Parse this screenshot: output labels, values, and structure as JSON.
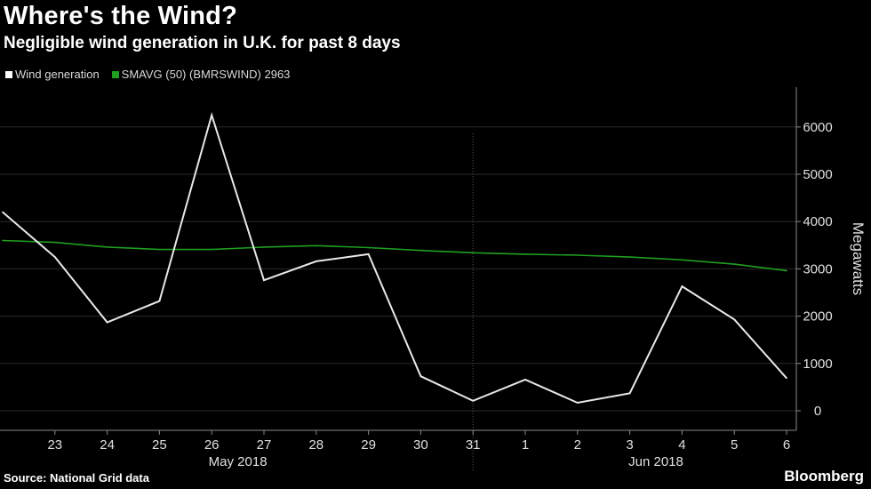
{
  "title": "Where's the Wind?",
  "subtitle": "Negligible wind generation in U.K. for past 8 days",
  "legend": {
    "items": [
      {
        "label": "Wind generation",
        "color": "#ffffff"
      },
      {
        "label": "SMAVG (50) (BMRSWIND) 2963",
        "color": "#1f9e1f"
      }
    ]
  },
  "footer": {
    "source": "Source: National Grid data",
    "brand": "Bloomberg"
  },
  "chart_data": {
    "type": "line",
    "ylabel": "Megawatts",
    "ylim": [
      -400,
      6800
    ],
    "yticks": [
      0,
      1000,
      2000,
      3000,
      4000,
      5000,
      6000
    ],
    "ytick_labels": [
      "0",
      "1000",
      "2000",
      "3000",
      "4000",
      "5000",
      "6000"
    ],
    "x": [
      "2018-05-22",
      "2018-05-23",
      "2018-05-24",
      "2018-05-25",
      "2018-05-26",
      "2018-05-27",
      "2018-05-28",
      "2018-05-29",
      "2018-05-30",
      "2018-05-31",
      "2018-06-01",
      "2018-06-02",
      "2018-06-03",
      "2018-06-04",
      "2018-06-05",
      "2018-06-06"
    ],
    "xtick_labels": [
      "23",
      "24",
      "25",
      "26",
      "27",
      "28",
      "29",
      "30",
      "31",
      "1",
      "2",
      "3",
      "4",
      "5",
      "6"
    ],
    "month_labels": [
      {
        "label": "May 2018",
        "center": "2018-05-26.5"
      },
      {
        "label": "Jun 2018",
        "center": "2018-06-03.5"
      }
    ],
    "month_divider": "2018-05-31",
    "grid": true,
    "legend_position": "top-left",
    "series": [
      {
        "name": "Wind generation",
        "color": "#e8e8e8",
        "values": [
          4200,
          3250,
          1870,
          2320,
          6250,
          2760,
          3160,
          3310,
          730,
          210,
          660,
          170,
          370,
          2630,
          1930,
          690
        ]
      },
      {
        "name": "SMAVG (50) (BMRSWIND) 2963",
        "color": "#1f9e1f",
        "values": [
          3600,
          3560,
          3460,
          3410,
          3410,
          3460,
          3490,
          3450,
          3390,
          3340,
          3310,
          3290,
          3250,
          3190,
          3100,
          2963
        ]
      }
    ]
  }
}
